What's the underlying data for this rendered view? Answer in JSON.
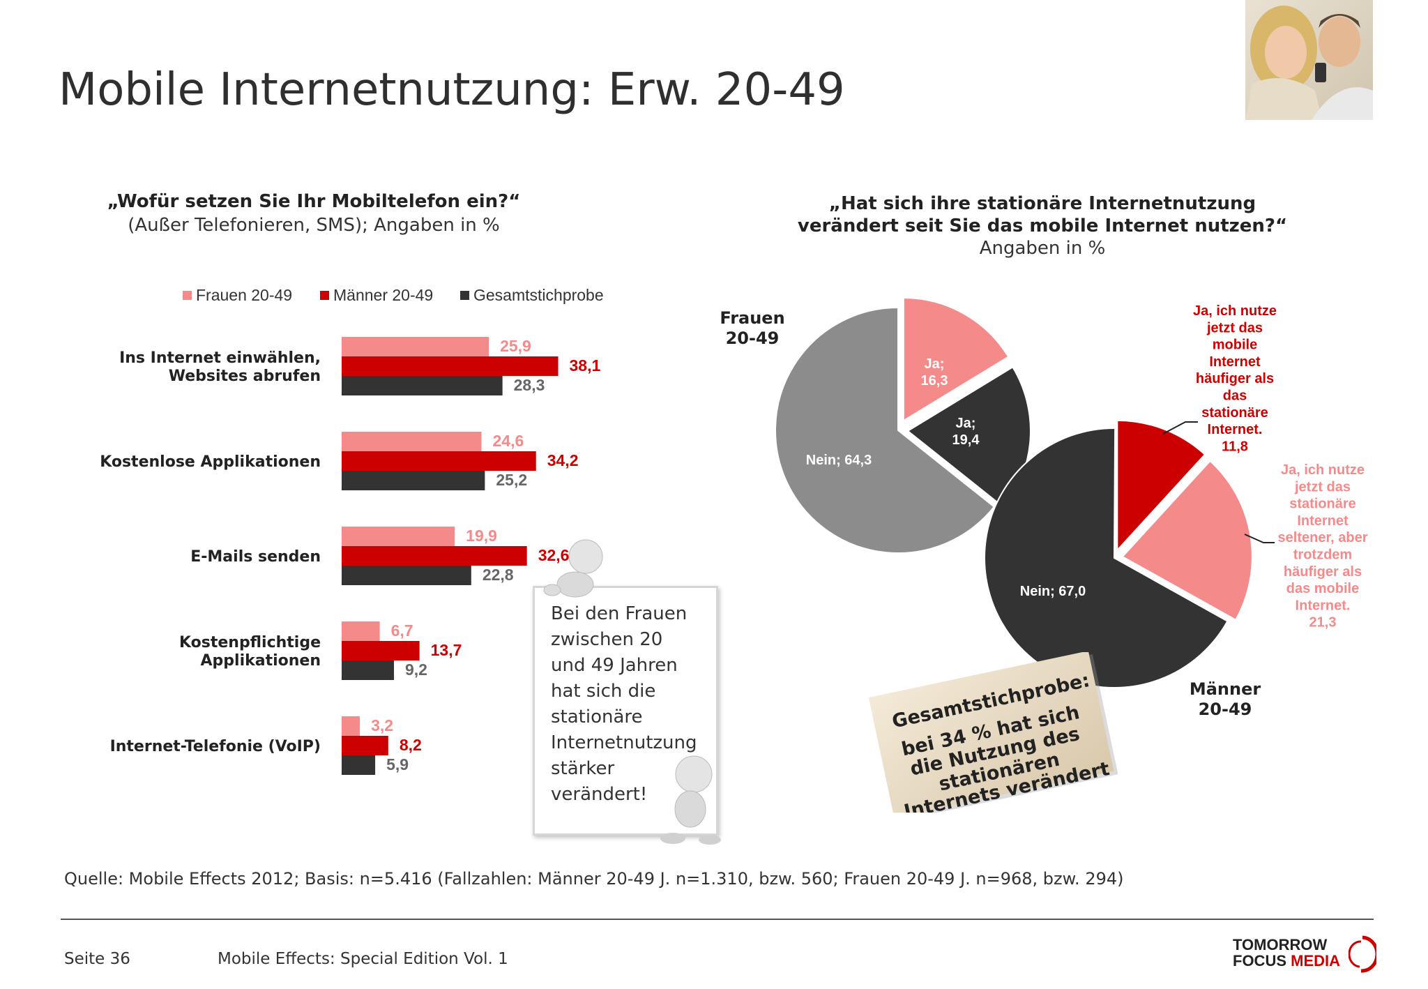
{
  "title": "Mobile Internetnutzung: Erw. 20-49",
  "left_chart": {
    "question": "„Wofür setzen Sie Ihr Mobiltelefon ein?“",
    "subtitle": "(Außer Telefonieren, SMS); Angaben in %"
  },
  "right_chart": {
    "question_line1": "„Hat sich ihre stationäre Internetnutzung",
    "question_line2": "verändert seit Sie das mobile Internet nutzen?“",
    "subtitle": "Angaben in %"
  },
  "legend": [
    "Frauen 20-49",
    "Männer 20-49",
    "Gesamtstichprobe"
  ],
  "colors": {
    "frauen": "#f58a8a",
    "maenner": "#cc0000",
    "gesamt": "#333333",
    "pie_grey": "#8c8c8c"
  },
  "chart_data": [
    {
      "type": "bar",
      "orientation": "horizontal",
      "categories": [
        [
          "Ins Internet einwählen,",
          "Websites abrufen"
        ],
        [
          "Kostenlose Applikationen"
        ],
        [
          "E-Mails senden"
        ],
        [
          "Kostenpflichtige",
          "Applikationen"
        ],
        [
          "Internet-Telefonie (VoIP)"
        ]
      ],
      "series": [
        {
          "name": "Frauen 20-49",
          "values": [
            25.9,
            24.6,
            19.9,
            6.7,
            3.2
          ],
          "labels": [
            "25,9",
            "24,6",
            "19,9",
            "6,7",
            "3,2"
          ]
        },
        {
          "name": "Männer 20-49",
          "values": [
            38.1,
            34.2,
            32.6,
            13.7,
            8.2
          ],
          "labels": [
            "38,1",
            "34,2",
            "32,6",
            "13,7",
            "8,2"
          ]
        },
        {
          "name": "Gesamtstichprobe",
          "values": [
            28.3,
            25.2,
            22.8,
            9.2,
            5.9
          ],
          "labels": [
            "28,3",
            "25,2",
            "22,8",
            "9,2",
            "5,9"
          ]
        }
      ],
      "legend_position": "top"
    },
    {
      "type": "pie",
      "group": [
        "Frauen",
        "20-49"
      ],
      "slices": [
        {
          "label": [
            "Ja;",
            "16,3"
          ],
          "value": 16.3,
          "color": "#f58a8a"
        },
        {
          "label": [
            "Ja;",
            "19,4"
          ],
          "value": 19.4,
          "color": "#333333"
        },
        {
          "label": [
            "Nein; 64,3"
          ],
          "value": 64.3,
          "color": "#8c8c8c"
        }
      ]
    },
    {
      "type": "pie",
      "group": [
        "Männer",
        "20-49"
      ],
      "slices": [
        {
          "label": [
            "Ja, ich nutze",
            "jetzt das",
            "mobile",
            "Internet",
            "häufiger als",
            "das",
            "stationäre",
            "Internet.",
            "11,8"
          ],
          "value": 11.8,
          "color": "#cc0000"
        },
        {
          "label": [
            "Ja, ich nutze",
            "jetzt das",
            "stationäre",
            "Internet",
            "seltener, aber",
            "trotzdem",
            "häufiger als",
            "das mobile",
            "Internet.",
            "21,3"
          ],
          "value": 21.3,
          "color": "#f58a8a"
        },
        {
          "label": [
            "Nein; 67,0"
          ],
          "value": 67.0,
          "color": "#333333"
        }
      ]
    }
  ],
  "note": {
    "lines": [
      "Bei den Frauen",
      "zwischen 20",
      "und 49 Jahren",
      "hat sich die",
      "stationäre",
      "Internetnutzung",
      "stärker",
      "verändert!"
    ]
  },
  "note2": {
    "heading": "Gesamtstichprobe:",
    "lines": [
      "bei 34 % hat sich",
      "die Nutzung des",
      "stationären",
      "Internets verändert"
    ]
  },
  "source": "Quelle: Mobile Effects 2012; Basis: n=5.416 (Fallzahlen: Männer 20-49 J. n=1.310, bzw. 560; Frauen 20-49 J. n=968, bzw. 294)",
  "footer": {
    "page": "Seite 36",
    "title": "Mobile Effects: Special Edition Vol. 1",
    "logo_line1": "TOMORROW",
    "logo_line2a": "FOCUS",
    "logo_line2b": "MEDIA"
  }
}
